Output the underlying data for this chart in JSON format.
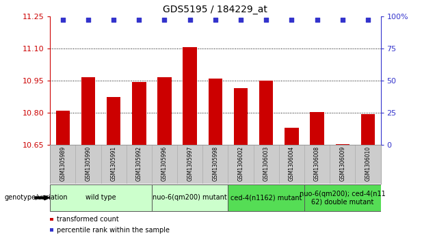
{
  "title": "GDS5195 / 184229_at",
  "samples": [
    "GSM1305989",
    "GSM1305990",
    "GSM1305991",
    "GSM1305992",
    "GSM1305996",
    "GSM1305997",
    "GSM1305998",
    "GSM1306002",
    "GSM1306003",
    "GSM1306004",
    "GSM1306008",
    "GSM1306009",
    "GSM1306010"
  ],
  "bar_values": [
    10.81,
    10.965,
    10.875,
    10.945,
    10.965,
    11.105,
    10.96,
    10.915,
    10.95,
    10.73,
    10.805,
    10.655,
    10.795
  ],
  "ymin": 10.65,
  "ymax": 11.25,
  "yticks": [
    10.65,
    10.8,
    10.95,
    11.1,
    11.25
  ],
  "right_yticks": [
    0,
    25,
    50,
    75,
    100
  ],
  "bar_color": "#cc0000",
  "dot_color": "#3333cc",
  "grid_color": "#000000",
  "groups": [
    {
      "label": "wild type",
      "start": 0,
      "end": 3,
      "color": "#ccffcc"
    },
    {
      "label": "nuo-6(qm200) mutant",
      "start": 4,
      "end": 6,
      "color": "#ccffcc"
    },
    {
      "label": "ced-4(n1162) mutant",
      "start": 7,
      "end": 9,
      "color": "#55dd55"
    },
    {
      "label": "nuo-6(qm200); ced-4(n11\n62) double mutant",
      "start": 10,
      "end": 12,
      "color": "#55dd55"
    }
  ],
  "legend_label_bar": "transformed count",
  "legend_label_dot": "percentile rank within the sample",
  "genotype_label": "genotype/variation",
  "sample_bg_color": "#cccccc",
  "plot_bg": "#ffffff",
  "title_fontsize": 10,
  "axis_fontsize": 8,
  "sample_fontsize": 5.5,
  "group_fontsize": 7,
  "legend_fontsize": 7
}
